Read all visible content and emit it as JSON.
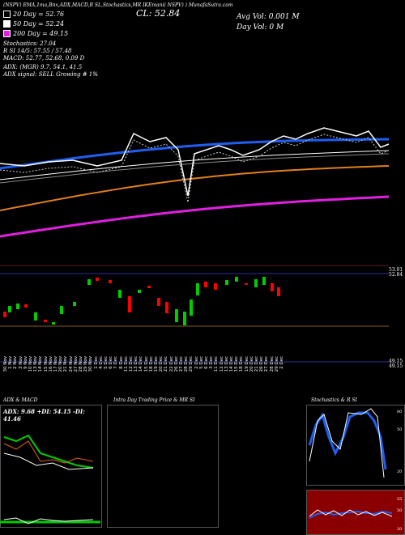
{
  "header": {
    "line": "(NSPV)  EMA,1ma,Bnx,ADX,MACD,B    SL,Stochastics,MR    IKEmani(  NSPV)      ) MunafaSutra.com",
    "close_label": "CL: 52.84",
    "avg_vol": "Avg Vol: 0.001 M",
    "day_vol": "Day Vol: 0  M"
  },
  "legend": [
    {
      "label": "20  Day = 52.76",
      "color": "#000000"
    },
    {
      "label": "50  Day = 52.24",
      "color": "#ffffff"
    },
    {
      "label": "200  Day = 49.15",
      "color": "#e020e0"
    }
  ],
  "indicators": {
    "stochastics": "Stochastics: 27.04",
    "stoch_detail": "R                     SI 14/5: 57.55 / 57.48",
    "macd": "MACD: 52.77, 52.68, 0.09 D",
    "adx": "ADX:                             (MGR) 9.7, 54.1, 41.5",
    "adx_signal": "ADX  signal: SELL  Growing # 1%"
  },
  "price_axis": {
    "top_labels": [
      "53.01",
      "52.84"
    ],
    "bottom_labels": [
      "49.15",
      "49.15"
    ]
  },
  "date_labels": [
    "30 Nov",
    "1 Nov",
    "2 Nov",
    "3 Nov",
    "9 Nov",
    "10 Nov",
    "13 Nov",
    "14 Nov",
    "15 Nov",
    "16 Nov",
    "17 Nov",
    "20 Nov",
    "21 Nov",
    "24 Nov",
    "27 Nov",
    "28 Nov",
    "29 Nov",
    "30 Nov",
    "1 Dec",
    "4 Dec",
    "5 Dec",
    "6 Dec",
    "7 Dec",
    "8 Dec",
    "11 Dec",
    "12 Dec",
    "13 Dec",
    "14 Dec",
    "15 Dec",
    "18 Dec",
    "19 Dec",
    "20 Dec",
    "21 Dec",
    "22 Dec",
    "26 Dec",
    "27 Dec",
    "28 Dec",
    "29 Dec",
    "2 Dec",
    "5 Dec",
    "6 Dec",
    "3 Dec",
    "11 Dec",
    "12 Dec",
    "13 Dec",
    "14 Dec",
    "15 Dec",
    "18 Dec",
    "19 Dec",
    "20 Dec",
    "21 Dec",
    "26 Dec",
    "27 Dec",
    "28 Dec",
    "29 Dec",
    "2 Dec",
    "3 Dec",
    "4 Dec",
    "5 Dec",
    "6 Dec",
    "7 Dec"
  ],
  "panels": {
    "adx_title": "ADX  & MACD",
    "adx_values": "ADX: 9.68  +DI: 54.15 -DI: 41.46",
    "intra_title": "Intra  Day Trading Price  & MR                  SI",
    "stoch_title": "Stochastics  & R                    SI",
    "stoch_axis": [
      "80",
      "50",
      "20"
    ],
    "rsi_axis": [
      "55",
      "50",
      "20"
    ]
  }
}
